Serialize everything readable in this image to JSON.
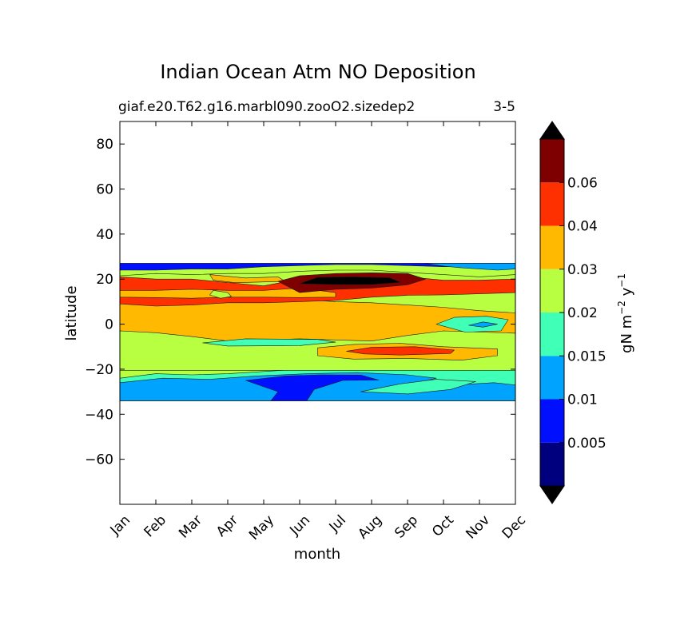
{
  "chart_data": {
    "type": "heatmap",
    "plot": "filled-contour",
    "title": "Indian Ocean Atm NO Deposition",
    "subtitle_left": "giaf.e20.T62.g16.marbl090.zooO2.sizedep2",
    "subtitle_right": "3-5",
    "xlabel": "month",
    "ylabel": "latitude",
    "x_ticks": [
      "Jan",
      "Feb",
      "Mar",
      "Apr",
      "May",
      "Jun",
      "Jul",
      "Aug",
      "Sep",
      "Oct",
      "Nov",
      "Dec"
    ],
    "y_ticks": [
      80,
      60,
      40,
      20,
      0,
      -20,
      -40,
      -60
    ],
    "y_tick_labels": [
      "80",
      "60",
      "40",
      "20",
      "0",
      "−20",
      "−40",
      "−60"
    ],
    "ylim": [
      -80,
      90
    ],
    "colorbar": {
      "label_main": "gN m",
      "label_exp1": "−2",
      "label_mid": " y",
      "label_exp2": "−1",
      "extend": "both",
      "tick_labels": [
        "0.005",
        "0.01",
        "0.015",
        "0.02",
        "0.03",
        "0.04",
        "0.06"
      ],
      "levels": [
        0.005,
        0.01,
        0.015,
        0.02,
        0.03,
        0.04,
        0.06
      ],
      "colors": [
        "#00007f",
        "#0010ff",
        "#00a4ff",
        "#40ffb7",
        "#b7ff40",
        "#ffb900",
        "#ff3000",
        "#7f0000"
      ],
      "under_color": "#000000",
      "over_color": "#000000"
    },
    "data_extent": {
      "lat_min": -34,
      "lat_max": 27
    },
    "regions": [
      {
        "level": "band",
        "points": [
          [
            0,
            27
          ],
          [
            11,
            27
          ],
          [
            11,
            -34
          ],
          [
            0,
            -34
          ]
        ],
        "color_index": 4
      },
      {
        "level": "0.01-0.015",
        "points": [
          [
            0,
            -24
          ],
          [
            1,
            -22
          ],
          [
            2,
            -22.5
          ],
          [
            3,
            -22
          ],
          [
            4,
            -21
          ],
          [
            5,
            -20
          ],
          [
            6,
            -19.5
          ],
          [
            7,
            -19
          ],
          [
            8,
            -19
          ],
          [
            9,
            -19.5
          ],
          [
            10,
            -19
          ],
          [
            11,
            -20
          ],
          [
            11,
            -34
          ],
          [
            0,
            -34
          ]
        ],
        "color_index": 3
      },
      {
        "level": "0.01-0.015",
        "points": [
          [
            0,
            -26
          ],
          [
            1.2,
            -24
          ],
          [
            2.5,
            -24.5
          ],
          [
            3.8,
            -23
          ],
          [
            5.2,
            -22
          ],
          [
            6.6,
            -21.5
          ],
          [
            8,
            -22.5
          ],
          [
            8.8,
            -24
          ],
          [
            8.3,
            -26
          ],
          [
            9.3,
            -27
          ],
          [
            10.4,
            -26
          ],
          [
            11,
            -27
          ],
          [
            11,
            -34
          ],
          [
            0,
            -34
          ]
        ],
        "color_index": 2
      },
      {
        "level": "0.005-0.01",
        "points": [
          [
            3.5,
            -25
          ],
          [
            4.6,
            -23
          ],
          [
            5.6,
            -22.5
          ],
          [
            6.7,
            -22.6
          ],
          [
            7.2,
            -24.8
          ],
          [
            6.2,
            -25
          ],
          [
            5.4,
            -29
          ],
          [
            5.2,
            -34
          ],
          [
            4.2,
            -34
          ],
          [
            4.4,
            -30
          ]
        ],
        "color_index": 1
      },
      {
        "level": "0.015-0.02",
        "points": [
          [
            6.7,
            -30
          ],
          [
            7.8,
            -26.5
          ],
          [
            8.8,
            -24.5
          ],
          [
            9.9,
            -25.5
          ],
          [
            9.2,
            -29
          ],
          [
            8,
            -31
          ]
        ],
        "color_index": 3
      },
      {
        "level": "0.03-0.04",
        "points": [
          [
            0,
            16
          ],
          [
            1,
            15
          ],
          [
            2,
            15
          ],
          [
            3,
            14
          ],
          [
            4,
            13
          ],
          [
            5,
            11
          ],
          [
            6,
            10
          ],
          [
            7,
            9.5
          ],
          [
            8,
            8.5
          ],
          [
            9,
            7.5
          ],
          [
            10,
            6
          ],
          [
            11,
            5
          ],
          [
            11,
            -4
          ],
          [
            10,
            -4
          ],
          [
            9,
            -3.5
          ],
          [
            8,
            -6
          ],
          [
            7,
            -9
          ],
          [
            6,
            -9.8
          ],
          [
            5,
            -9
          ],
          [
            4,
            -8.5
          ],
          [
            3,
            -8
          ],
          [
            2,
            -6
          ],
          [
            1,
            -4
          ],
          [
            0,
            -3
          ]
        ],
        "color_index": 5
      },
      {
        "level": "0.02-0.03 bulge",
        "points": [
          [
            0,
            -3
          ],
          [
            1,
            -3.8
          ],
          [
            2,
            -5.5
          ],
          [
            3,
            -7.5
          ],
          [
            4,
            -7
          ],
          [
            5,
            -6.5
          ],
          [
            6,
            -7
          ],
          [
            7,
            -7.5
          ],
          [
            8,
            -5
          ],
          [
            9,
            -3
          ],
          [
            10,
            -3.5
          ],
          [
            11,
            -4
          ],
          [
            11,
            -20.5
          ],
          [
            0,
            -20.5
          ]
        ],
        "color_index": 4
      },
      {
        "level": "0.03-0.04",
        "points": [
          [
            5.5,
            -10.5
          ],
          [
            6.5,
            -9
          ],
          [
            7.8,
            -8.5
          ],
          [
            9,
            -10
          ],
          [
            10.5,
            -11
          ],
          [
            10.5,
            -14
          ],
          [
            9.5,
            -16
          ],
          [
            8,
            -15.2
          ],
          [
            6.5,
            -15.5
          ],
          [
            5.5,
            -14
          ]
        ],
        "color_index": 5
      },
      {
        "level": "0.04-0.06",
        "points": [
          [
            6.3,
            -12
          ],
          [
            7,
            -10.3
          ],
          [
            8.2,
            -10
          ],
          [
            9.3,
            -11.5
          ],
          [
            9.2,
            -13
          ],
          [
            7.8,
            -13.7
          ],
          [
            6.8,
            -13.2
          ]
        ],
        "color_index": 6
      },
      {
        "level": "0.02-0.03",
        "points": [
          [
            2.3,
            -8.3
          ],
          [
            3.5,
            -6.5
          ],
          [
            5.5,
            -6.8
          ],
          [
            6,
            -8
          ],
          [
            5,
            -9.5
          ],
          [
            3,
            -9.7
          ]
        ],
        "color_index": 3
      },
      {
        "level": "0.015-0.02",
        "points": [
          [
            8.8,
            0
          ],
          [
            9.3,
            3
          ],
          [
            10.2,
            3.5
          ],
          [
            10.8,
            2
          ],
          [
            10.6,
            -3
          ],
          [
            9.6,
            -3.5
          ]
        ],
        "color_index": 3
      },
      {
        "level": "0.01-0.015",
        "points": [
          [
            9.7,
            -0.5
          ],
          [
            10.1,
            1
          ],
          [
            10.5,
            0
          ],
          [
            10.1,
            -1.3
          ]
        ],
        "color_index": 2
      },
      {
        "level": "0.04-0.06",
        "points": [
          [
            0,
            21
          ],
          [
            1,
            20
          ],
          [
            2,
            20
          ],
          [
            3,
            18.5
          ],
          [
            4,
            17
          ],
          [
            5,
            20
          ],
          [
            6,
            21.5
          ],
          [
            7,
            21.7
          ],
          [
            8,
            21
          ],
          [
            9,
            19.5
          ],
          [
            10,
            19.5
          ],
          [
            11,
            20
          ],
          [
            11,
            14
          ],
          [
            10,
            13.5
          ],
          [
            9,
            13
          ],
          [
            8,
            12.8
          ],
          [
            7,
            12
          ],
          [
            6,
            10.5
          ],
          [
            5,
            10
          ],
          [
            4,
            9.5
          ],
          [
            3,
            9.5
          ],
          [
            2,
            8.5
          ],
          [
            1,
            8
          ],
          [
            0,
            9
          ]
        ],
        "color_index": 6
      },
      {
        "level": "0.03-0.04",
        "points": [
          [
            0,
            12
          ],
          [
            1,
            11.8
          ],
          [
            2,
            11.5
          ],
          [
            3,
            12
          ],
          [
            4,
            12
          ],
          [
            5,
            11.8
          ],
          [
            6,
            12
          ],
          [
            6,
            14
          ],
          [
            5,
            16
          ],
          [
            4,
            15
          ],
          [
            3,
            15
          ],
          [
            2,
            15.5
          ],
          [
            1,
            15
          ],
          [
            0,
            15
          ]
        ],
        "color_index": 5
      },
      {
        "level": "0.03-0.04",
        "points": [
          [
            2.5,
            22
          ],
          [
            3.5,
            20.5
          ],
          [
            4.4,
            21
          ],
          [
            4.6,
            19
          ],
          [
            3.2,
            18.4
          ],
          [
            2.6,
            19.5
          ]
        ],
        "color_index": 5
      },
      {
        "level": "0.02-0.03",
        "points": [
          [
            2.6,
            15
          ],
          [
            3,
            14
          ],
          [
            3.1,
            12.3
          ],
          [
            2.8,
            11.5
          ],
          [
            2.5,
            13
          ]
        ],
        "color_index": 4
      },
      {
        "level": ">0.06",
        "points": [
          [
            4.4,
            19
          ],
          [
            5,
            21.5
          ],
          [
            6,
            22.5
          ],
          [
            7,
            22.8
          ],
          [
            8,
            22.5
          ],
          [
            8.5,
            20
          ],
          [
            8,
            17.5
          ],
          [
            7,
            16
          ],
          [
            6,
            15.5
          ],
          [
            5,
            14
          ]
        ],
        "color_index": 7
      },
      {
        "level": "over",
        "points": [
          [
            5,
            18
          ],
          [
            5.5,
            20.8
          ],
          [
            6.5,
            21
          ],
          [
            7.5,
            20.6
          ],
          [
            7.8,
            18.6
          ],
          [
            7,
            17.6
          ],
          [
            6,
            17.6
          ]
        ],
        "color_index": 8
      },
      {
        "level": "0.02-0.03 top",
        "points": [
          [
            0,
            27
          ],
          [
            11,
            27
          ],
          [
            11,
            22
          ],
          [
            10,
            21
          ],
          [
            9,
            22
          ],
          [
            8,
            23
          ],
          [
            7,
            24
          ],
          [
            6,
            24
          ],
          [
            5,
            23.5
          ],
          [
            4,
            22.5
          ],
          [
            3,
            22.5
          ],
          [
            2,
            22
          ],
          [
            1,
            22.5
          ],
          [
            0,
            21.5
          ]
        ],
        "color_index": 4
      },
      {
        "level": "0.005-0.01 top",
        "points": [
          [
            0,
            27
          ],
          [
            11,
            27
          ],
          [
            11,
            25.5
          ],
          [
            10,
            25.8
          ],
          [
            9,
            25.5
          ],
          [
            8,
            26
          ],
          [
            7,
            26.5
          ],
          [
            6,
            26.5
          ],
          [
            5,
            26
          ],
          [
            4,
            25.5
          ],
          [
            3,
            24.5
          ],
          [
            2,
            24.5
          ],
          [
            1,
            24
          ],
          [
            0,
            24
          ]
        ],
        "color_index": 1
      },
      {
        "level": "0.01-0.015 top",
        "points": [
          [
            8.5,
            27
          ],
          [
            11,
            27
          ],
          [
            11,
            24.5
          ],
          [
            10.5,
            24
          ],
          [
            9.5,
            25
          ],
          [
            9,
            25.8
          ]
        ],
        "color_index": 2
      }
    ]
  }
}
